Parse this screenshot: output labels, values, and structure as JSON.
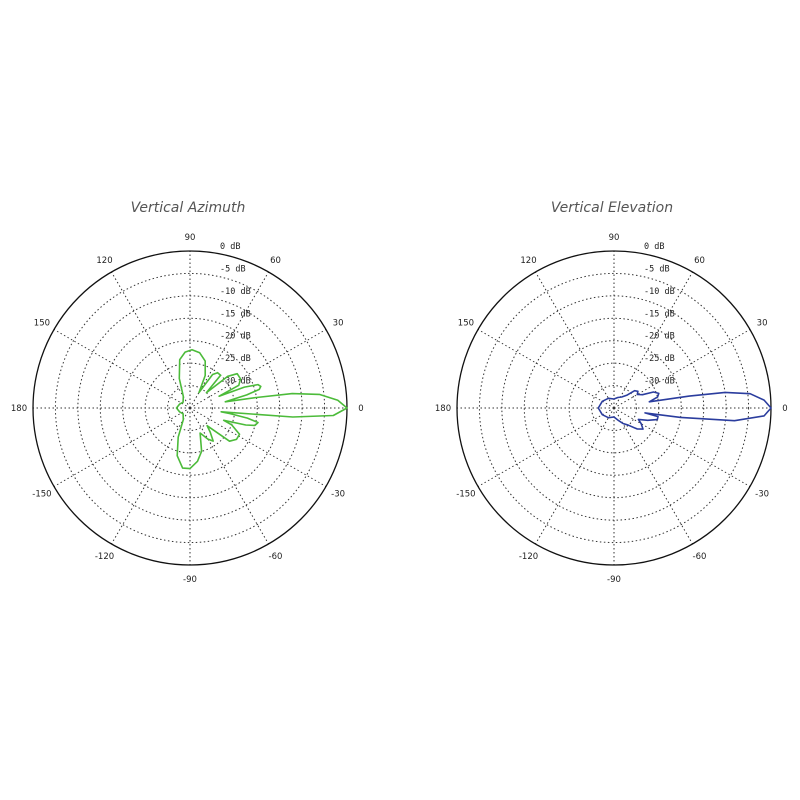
{
  "chart_data": [
    {
      "type": "polar-line",
      "title": "Vertical Azimuth",
      "series_color": "#4cbb3a",
      "radial_labels": [
        "0 dB",
        "-5 dB",
        "-10 dB",
        "-15 dB",
        "-20 dB",
        "-25 dB",
        "-30 dB"
      ],
      "radial_values_db": [
        0,
        -5,
        -10,
        -15,
        -20,
        -25,
        -30
      ],
      "angle_labels": [
        "0",
        "30",
        "60",
        "90",
        "120",
        "150",
        "180",
        "-150",
        "-120",
        "-90",
        "-60",
        "-30"
      ],
      "angle_values_deg": [
        0,
        30,
        60,
        90,
        120,
        150,
        180,
        -150,
        -120,
        -90,
        -60,
        -30
      ],
      "rlim_db": [
        -35,
        0
      ],
      "grid": true,
      "series": [
        {
          "points_deg_db": [
            [
              0,
              0
            ],
            [
              3,
              -2
            ],
            [
              6,
              -6
            ],
            [
              8,
              -12
            ],
            [
              9,
              -20
            ],
            [
              10,
              -27
            ],
            [
              13,
              -22
            ],
            [
              15,
              -19
            ],
            [
              17,
              -18.5
            ],
            [
              19,
              -19
            ],
            [
              21,
              -22
            ],
            [
              22,
              -28
            ],
            [
              25,
              -23
            ],
            [
              30,
              -22
            ],
            [
              36,
              -22
            ],
            [
              40,
              -24
            ],
            [
              43,
              -30
            ],
            [
              47,
              -25
            ],
            [
              52,
              -25
            ],
            [
              56,
              -26
            ],
            [
              60,
              -31
            ],
            [
              65,
              -27
            ],
            [
              72,
              -24
            ],
            [
              80,
              -22.5
            ],
            [
              88,
              -22
            ],
            [
              95,
              -22.5
            ],
            [
              102,
              -24
            ],
            [
              110,
              -28
            ],
            [
              120,
              -32
            ],
            [
              140,
              -33
            ],
            [
              160,
              -32.5
            ],
            [
              180,
              -32
            ],
            [
              -160,
              -32.5
            ],
            [
              -140,
              -33
            ],
            [
              -120,
              -32
            ],
            [
              -112,
              -28
            ],
            [
              -105,
              -24
            ],
            [
              -97,
              -21.5
            ],
            [
              -90,
              -21.5
            ],
            [
              -82,
              -23
            ],
            [
              -75,
              -25
            ],
            [
              -68,
              -29
            ],
            [
              -60,
              -27
            ],
            [
              -55,
              -26
            ],
            [
              -50,
              -28
            ],
            [
              -46,
              -29.5
            ],
            [
              -40,
              -23.5
            ],
            [
              -34,
              -22.5
            ],
            [
              -28,
              -22.5
            ],
            [
              -22,
              -25
            ],
            [
              -20,
              -27
            ],
            [
              -17,
              -22
            ],
            [
              -15,
              -20
            ],
            [
              -12,
              -19.5
            ],
            [
              -10,
              -22
            ],
            [
              -8,
              -26
            ],
            [
              -7,
              -28
            ],
            [
              -5,
              -12
            ],
            [
              -3,
              -3
            ],
            [
              0,
              0
            ]
          ]
        }
      ]
    },
    {
      "type": "polar-line",
      "title": "Vertical Elevation",
      "series_color": "#2b3d9e",
      "radial_labels": [
        "0 dB",
        "-5 dB",
        "-10 dB",
        "-15 dB",
        "-20 dB",
        "-25 dB",
        "-30 dB"
      ],
      "radial_values_db": [
        0,
        -5,
        -10,
        -15,
        -20,
        -25,
        -30
      ],
      "angle_labels": [
        "0",
        "30",
        "60",
        "90",
        "120",
        "150",
        "180",
        "-150",
        "-120",
        "-90",
        "-60",
        "-30"
      ],
      "angle_values_deg": [
        0,
        30,
        60,
        90,
        120,
        150,
        180,
        -150,
        -120,
        -90,
        -60,
        -30
      ],
      "rlim_db": [
        -35,
        0
      ],
      "grid": true,
      "series": [
        {
          "points_deg_db": [
            [
              0,
              0
            ],
            [
              3,
              -1.5
            ],
            [
              6,
              -4.5
            ],
            [
              8,
              -10
            ],
            [
              9,
              -18
            ],
            [
              10,
              -27
            ],
            [
              14,
              -25
            ],
            [
              18,
              -24.5
            ],
            [
              22,
              -25.5
            ],
            [
              25,
              -28
            ],
            [
              30,
              -29
            ],
            [
              35,
              -28.5
            ],
            [
              40,
              -29
            ],
            [
              45,
              -31
            ],
            [
              55,
              -32
            ],
            [
              70,
              -32.5
            ],
            [
              90,
              -33
            ],
            [
              120,
              -32.5
            ],
            [
              150,
              -32
            ],
            [
              180,
              -31.5
            ],
            [
              -150,
              -32
            ],
            [
              -120,
              -32.5
            ],
            [
              -90,
              -33
            ],
            [
              -70,
              -32
            ],
            [
              -60,
              -31
            ],
            [
              -50,
              -30
            ],
            [
              -42,
              -28
            ],
            [
              -36,
              -27
            ],
            [
              -30,
              -28
            ],
            [
              -25,
              -29
            ],
            [
              -20,
              -27
            ],
            [
              -15,
              -25
            ],
            [
              -11,
              -25
            ],
            [
              -9,
              -28
            ],
            [
              -8,
              -20
            ],
            [
              -6,
              -8
            ],
            [
              -3,
              -1.5
            ],
            [
              0,
              0
            ]
          ]
        }
      ]
    }
  ]
}
